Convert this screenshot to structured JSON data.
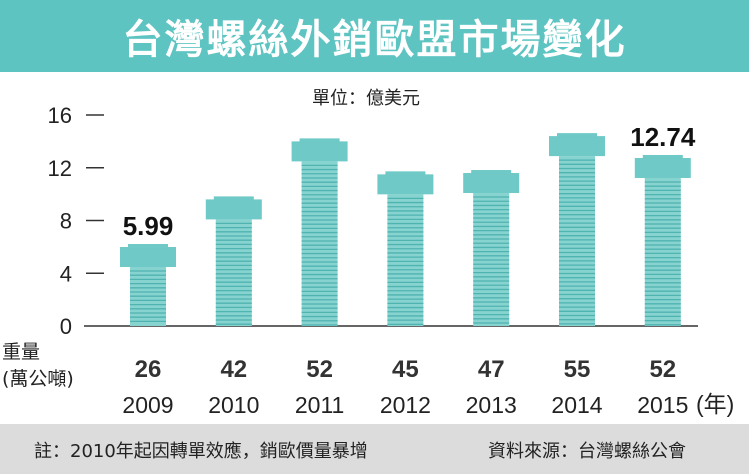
{
  "header": {
    "title": "台灣螺絲外銷歐盟市場變化"
  },
  "unit_label": "單位：億美元",
  "weight_label_line1": "重量",
  "weight_label_line2": "(萬公噸)",
  "year_unit_label": "(年)",
  "footer": {
    "note": "註：2010年起因轉單效應，銷歐價量暴增",
    "source": "資料來源：台灣螺絲公會"
  },
  "colors": {
    "banner": "#5ec4c2",
    "bolt_head": "#6fc9c6",
    "bolt_shaft": "#86d3d0",
    "bolt_thread": "#4fb3b0",
    "footer": "#dcdcdc"
  },
  "chart_data": {
    "type": "bar",
    "categories": [
      "2009",
      "2010",
      "2011",
      "2012",
      "2013",
      "2014",
      "2015"
    ],
    "series": [
      {
        "values": [
          5.99,
          9.6,
          14.0,
          11.5,
          11.6,
          14.4,
          12.74
        ]
      }
    ],
    "weights": [
      "26",
      "42",
      "52",
      "45",
      "47",
      "55",
      "52"
    ],
    "data_labels": {
      "2009": "5.99",
      "2015": "12.74"
    },
    "yticks": [
      "0",
      "4",
      "8",
      "12",
      "16"
    ],
    "ylim": [
      0,
      16
    ]
  }
}
